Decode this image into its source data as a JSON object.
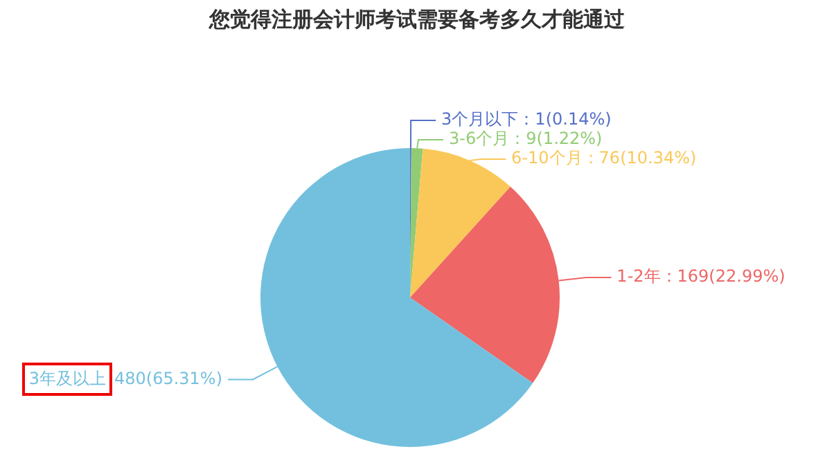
{
  "chart_data": {
    "type": "pie",
    "title": "您觉得注册会计师考试需要备考多久才能通过",
    "categories": [
      "3个月以下",
      "3-6个月",
      "6-10个月",
      "1-2年",
      "3年及以上"
    ],
    "values": [
      1,
      9,
      76,
      169,
      480
    ],
    "colors": [
      "#5470c6",
      "#91cc75",
      "#fac858",
      "#ee6666",
      "#73c0de"
    ],
    "value_labels": [
      "：1(0.14%)",
      "：9(1.22%)",
      "：76(10.34%)",
      "：169(22.99%)",
      "480(65.31%)"
    ],
    "legend": false
  }
}
